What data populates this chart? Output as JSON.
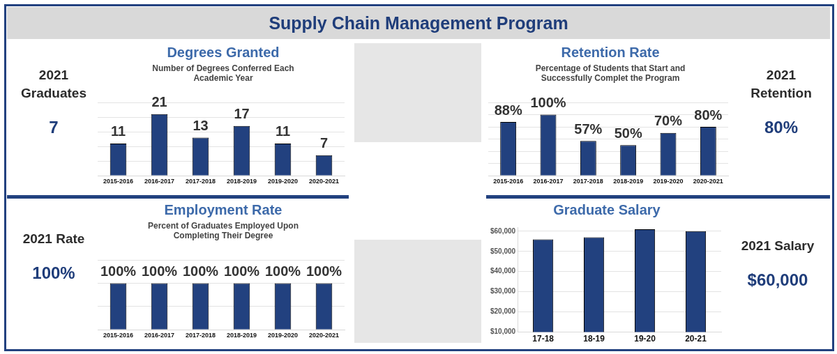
{
  "chart_data": [
    {
      "type": "other",
      "title": "Supply Chain Management Program"
    },
    {
      "type": "other",
      "title": "2021 Graduates",
      "annotations": [
        "7"
      ]
    },
    {
      "type": "bar",
      "title": "Degrees Granted",
      "subtitle": "Number of Degrees Conferred Each Academic Year",
      "categories": [
        "2015-2016",
        "2016-2017",
        "2017-2018",
        "2018-2019",
        "2019-2020",
        "2020-2021"
      ],
      "values": [
        11,
        21,
        13,
        17,
        11,
        7
      ],
      "color": "#22417f",
      "data_labels": true,
      "ylim": [
        0,
        25
      ],
      "yticks": [
        {
          "value": 0,
          "label": null
        },
        {
          "value": 5,
          "label": null
        },
        {
          "value": 10,
          "label": null
        },
        {
          "value": 15,
          "label": null
        },
        {
          "value": 20,
          "label": null
        },
        {
          "value": 25,
          "label": null
        }
      ],
      "tick_labels": "x",
      "grid": "y"
    },
    {
      "type": "bar",
      "title": "Retention Rate",
      "subtitle": "Percentage of Students that Start and Successfully Complet the Program",
      "categories": [
        "2015-2016",
        "2016-2017",
        "2017-2018",
        "2018-2019",
        "2019-2020",
        "2020-2021"
      ],
      "values": [
        88,
        100,
        57,
        50,
        70,
        80
      ],
      "value_labels": [
        "88%",
        "100%",
        "57%",
        "50%",
        "70%",
        "80%"
      ],
      "color": "#22417f",
      "ylim": [
        0,
        120
      ],
      "yticks": [
        {
          "value": 0,
          "label": null
        },
        {
          "value": 20,
          "label": null
        },
        {
          "value": 40,
          "label": null
        },
        {
          "value": 60,
          "label": null
        },
        {
          "value": 80,
          "label": null
        },
        {
          "value": 100,
          "label": null
        },
        {
          "value": 120,
          "label": null
        }
      ],
      "tick_labels": "x",
      "grid": "y"
    },
    {
      "type": "other",
      "title": "2021 Retention",
      "annotations": [
        "80%"
      ]
    },
    {
      "type": "other",
      "title": "2021 Rate",
      "annotations": [
        "100%"
      ]
    },
    {
      "type": "bar",
      "title": "Employment Rate",
      "subtitle": "Percent of Graduates Employed Upon Completing Their Degree",
      "categories": [
        "2015-2016",
        "2016-2017",
        "2017-2018",
        "2018-2019",
        "2019-2020",
        "2020-2021"
      ],
      "values": [
        100,
        100,
        100,
        100,
        100,
        100
      ],
      "value_labels": [
        "100%",
        "100%",
        "100%",
        "100%",
        "100%",
        "100%"
      ],
      "color": "#22417f",
      "ylim": [
        0,
        150
      ],
      "yticks": [
        {
          "value": 0,
          "label": null
        },
        {
          "value": 50,
          "label": null
        },
        {
          "value": 100,
          "label": null
        },
        {
          "value": 150,
          "label": null
        }
      ],
      "tick_labels": "x",
      "grid": "y"
    },
    {
      "type": "bar",
      "title": "Graduate Salary",
      "categories": [
        "17-18",
        "18-19",
        "19-20",
        "20-21"
      ],
      "values": [
        56000,
        57000,
        61000,
        60000
      ],
      "color": "#22417f",
      "ylim": [
        10000,
        62000
      ],
      "yticks": [
        {
          "value": 10000,
          "label": "$10,000"
        },
        {
          "value": 20000,
          "label": "$20,000"
        },
        {
          "value": 30000,
          "label": "$30,000"
        },
        {
          "value": 40000,
          "label": "$40,000"
        },
        {
          "value": 50000,
          "label": "$50,000"
        },
        {
          "value": 60000,
          "label": "$60,000"
        }
      ],
      "grid": "y"
    },
    {
      "type": "other",
      "title": "2021 Salary",
      "annotations": [
        "$60,000"
      ]
    }
  ]
}
